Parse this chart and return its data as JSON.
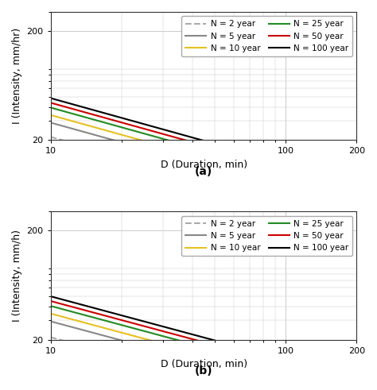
{
  "xlabel": "D (Duration, min)",
  "ylabel_a": "I (Intensity, mm/hr)",
  "ylabel_b": "I (Intensity, mm/h)",
  "label_a": "(a)",
  "label_b": "(b)",
  "xlim": [
    10,
    200
  ],
  "ylim": [
    20,
    300
  ],
  "legend_entries": [
    {
      "label": "N = 2 year",
      "color": "#aaaaaa",
      "linestyle": "--"
    },
    {
      "label": "N = 5 year",
      "color": "#888888",
      "linestyle": "-"
    },
    {
      "label": "N = 10 year",
      "color": "#e8c020",
      "linestyle": "-"
    },
    {
      "label": "N = 25 year",
      "color": "#228B22",
      "linestyle": "-"
    },
    {
      "label": "N = 50 year",
      "color": "#cc0000",
      "linestyle": "-"
    },
    {
      "label": "N = 100 year",
      "color": "#000000",
      "linestyle": "-"
    }
  ],
  "curves_a": {
    "N2": {
      "c": 85,
      "n": 0.6
    },
    "N5": {
      "c": 115,
      "n": 0.6
    },
    "N10": {
      "c": 135,
      "n": 0.6
    },
    "N25": {
      "c": 158,
      "n": 0.6
    },
    "N50": {
      "c": 175,
      "n": 0.6
    },
    "N100": {
      "c": 193,
      "n": 0.6
    }
  },
  "curves_b": {
    "N2": {
      "c": 80,
      "n": 0.58
    },
    "N5": {
      "c": 112,
      "n": 0.58
    },
    "N10": {
      "c": 132,
      "n": 0.58
    },
    "N25": {
      "c": 155,
      "n": 0.58
    },
    "N50": {
      "c": 172,
      "n": 0.58
    },
    "N100": {
      "c": 190,
      "n": 0.58
    }
  },
  "grid_color": "#cccccc",
  "bg_color": "#ffffff",
  "tick_fontsize": 8,
  "label_fontsize": 9,
  "legend_fontsize": 7.5
}
